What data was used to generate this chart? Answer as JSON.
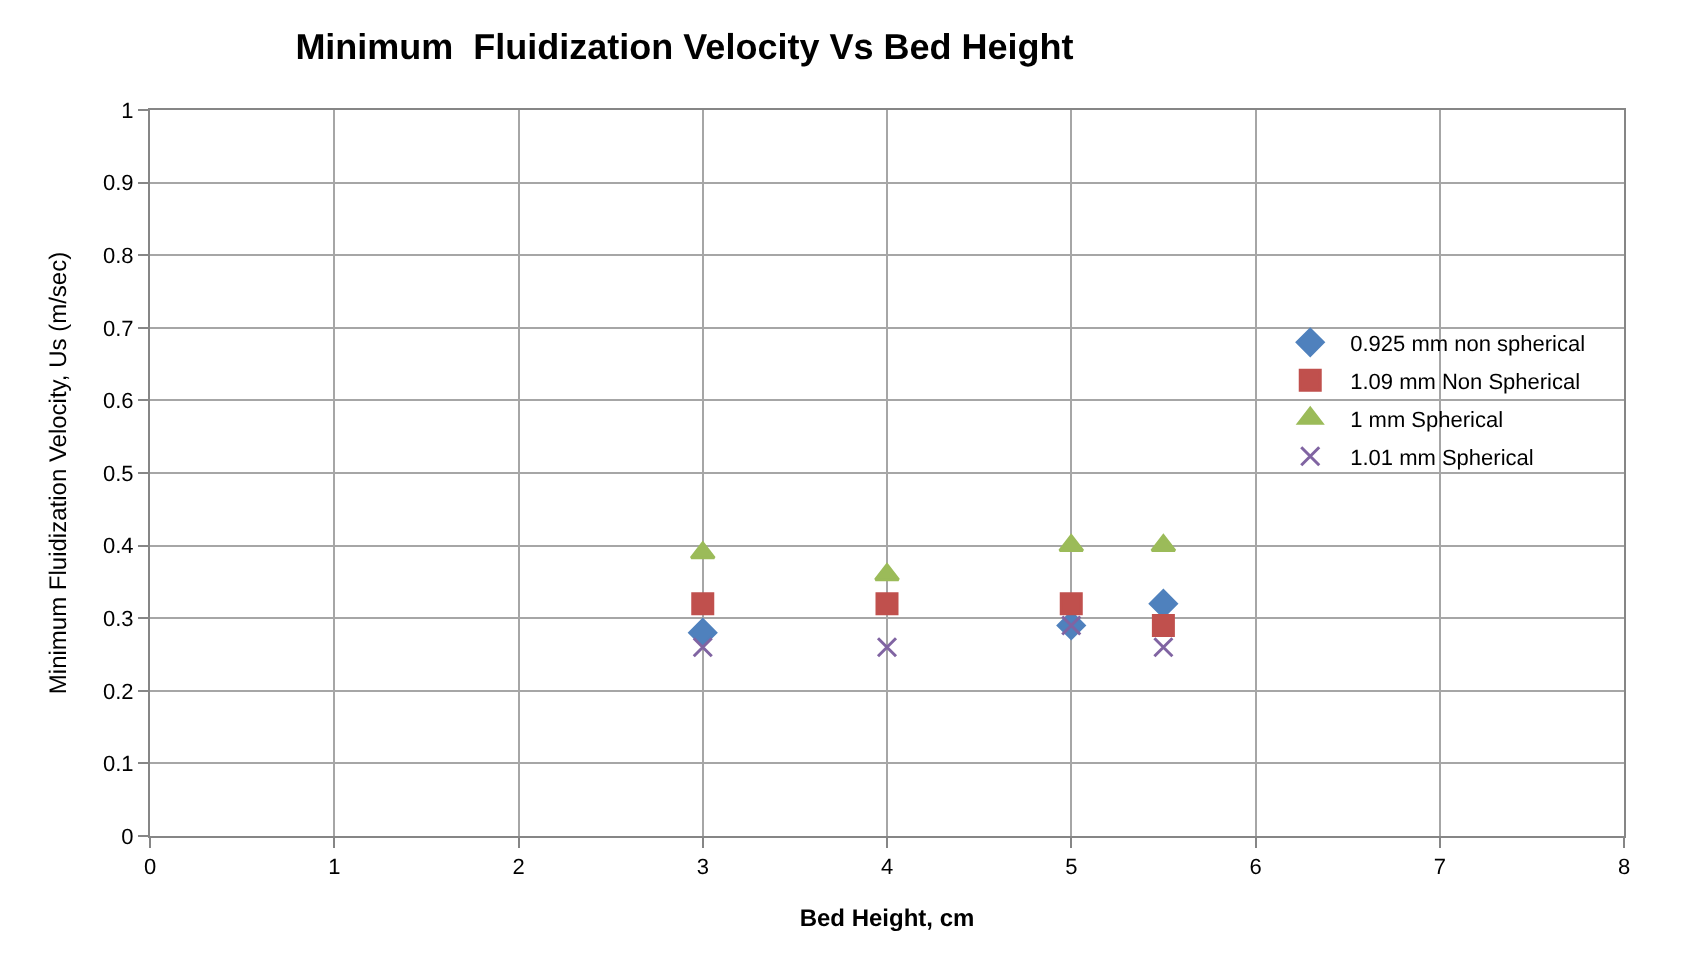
{
  "chart_data": {
    "type": "scatter",
    "title": "Minimum  Fluidization Velocity Vs Bed Height",
    "xlabel": "Bed Height, cm",
    "ylabel": "Minimum Fluidization Velocity, Us (m/sec)",
    "series": [
      {
        "name": "0.925 mm non spherical",
        "color": "#4f81bd",
        "marker": "diamond",
        "x": [
          3,
          5,
          5.5
        ],
        "values": [
          0.28,
          0.29,
          0.32
        ]
      },
      {
        "name": "1.09 mm Non Spherical",
        "color": "#c0504d",
        "marker": "square",
        "x": [
          3,
          4,
          5,
          5.5
        ],
        "values": [
          0.32,
          0.32,
          0.32,
          0.29
        ]
      },
      {
        "name": "1 mm Spherical",
        "color": "#9bbb59",
        "marker": "triangle",
        "x": [
          3,
          4,
          5,
          5.5
        ],
        "values": [
          0.39,
          0.36,
          0.4,
          0.4
        ]
      },
      {
        "name": "1.01 mm Spherical",
        "color": "#8064a2",
        "marker": "cross",
        "x": [
          3,
          4,
          5,
          5.5
        ],
        "values": [
          0.26,
          0.26,
          0.29,
          0.26
        ]
      }
    ],
    "xlim": [
      0,
      8
    ],
    "xticks": [
      0,
      1,
      2,
      3,
      4,
      5,
      6,
      7,
      8
    ],
    "ylim": [
      0,
      1
    ],
    "yticks": [
      0,
      0.1,
      0.2,
      0.3,
      0.4,
      0.5,
      0.6,
      0.7,
      0.8,
      0.9,
      1
    ],
    "grid": true,
    "legend": "right"
  }
}
